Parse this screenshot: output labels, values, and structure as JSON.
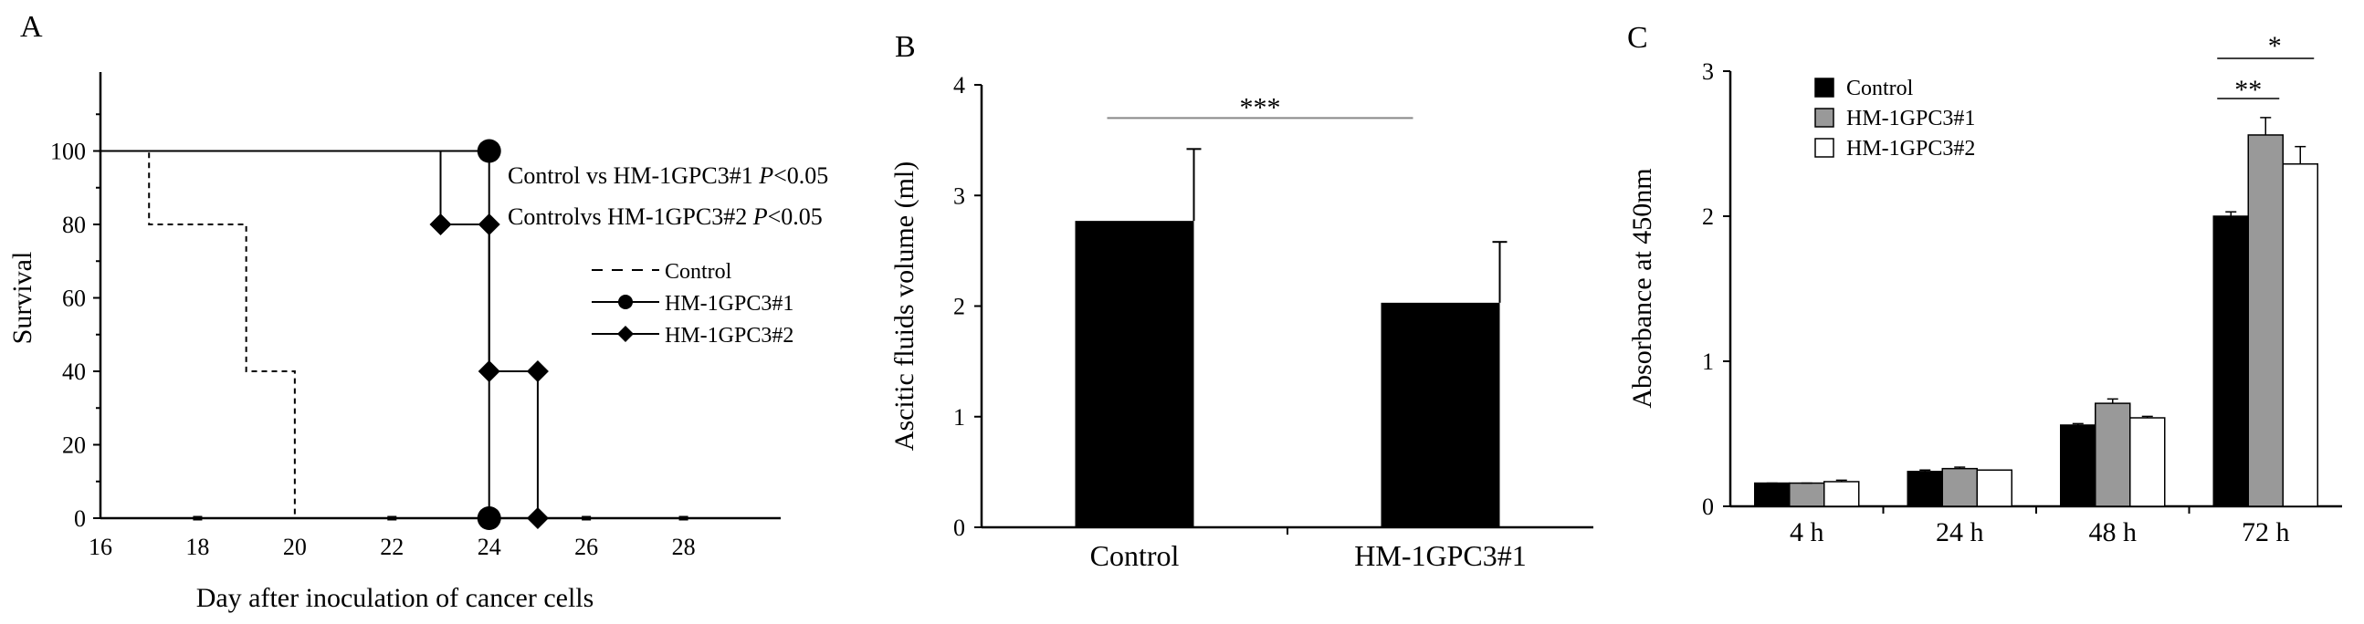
{
  "chart_data": [
    {
      "panel": "A",
      "type": "line",
      "xlabel": "Day after inoculation of cancer cells",
      "ylabel": "Survival",
      "xlim": [
        16,
        30
      ],
      "ylim": [
        0,
        120
      ],
      "xticks": [
        16,
        18,
        20,
        22,
        24,
        26,
        28
      ],
      "yticks": [
        0,
        20,
        40,
        60,
        80,
        100
      ],
      "legend_position": "right",
      "annotations": [
        {
          "text": "Control vs HM-1GPC3#1 ",
          "p_label": "P",
          "p_value": "<0.05"
        },
        {
          "text": "Controlvs HM-1GPC3#2 ",
          "p_label": "P",
          "p_value": "<0.05"
        }
      ],
      "series": [
        {
          "name": "Control",
          "style": "dashed",
          "marker": "none",
          "x": [
            16,
            17,
            17,
            19,
            19,
            20,
            20
          ],
          "y": [
            100,
            100,
            80,
            80,
            40,
            40,
            0
          ]
        },
        {
          "name": "HM-1GPC3#1",
          "style": "solid",
          "marker": "circle",
          "x": [
            16,
            24,
            24
          ],
          "y": [
            100,
            100,
            0
          ],
          "marker_points": [
            [
              24,
              100
            ],
            [
              24,
              0
            ]
          ]
        },
        {
          "name": "HM-1GPC3#2",
          "style": "solid",
          "marker": "diamond",
          "x": [
            16,
            23,
            23,
            24,
            24,
            25,
            25
          ],
          "y": [
            100,
            100,
            80,
            80,
            40,
            40,
            0
          ],
          "marker_points": [
            [
              23,
              80
            ],
            [
              24,
              80
            ],
            [
              24,
              40
            ],
            [
              25,
              40
            ],
            [
              25,
              0
            ]
          ]
        }
      ],
      "censor_ticks_x": [
        18,
        22,
        26,
        28
      ]
    },
    {
      "panel": "B",
      "type": "bar",
      "ylabel": "Ascitic fluids volume (ml)",
      "ylim": [
        0,
        4
      ],
      "yticks": [
        0,
        1,
        2,
        3,
        4
      ],
      "categories": [
        "Control",
        "HM-1GPC3#1"
      ],
      "values": [
        2.77,
        2.03
      ],
      "errors": [
        0.65,
        0.55
      ],
      "bar_color": "#000000",
      "significance": {
        "label": "***",
        "between": [
          0,
          1
        ]
      }
    },
    {
      "panel": "C",
      "type": "bar",
      "ylabel": "Absorbance at 450nm",
      "ylim": [
        0,
        3
      ],
      "yticks": [
        0,
        1,
        2,
        3
      ],
      "categories": [
        "4 h",
        "24 h",
        "48 h",
        "72 h"
      ],
      "legend_position": "top-left",
      "series": [
        {
          "name": "Control",
          "color": "#000000",
          "values": [
            0.16,
            0.24,
            0.56,
            2.0
          ],
          "errors": [
            0.0,
            0.01,
            0.01,
            0.03
          ]
        },
        {
          "name": "HM-1GPC3#1",
          "color": "#999999",
          "values": [
            0.16,
            0.26,
            0.71,
            2.56
          ],
          "errors": [
            0.0,
            0.01,
            0.03,
            0.12
          ]
        },
        {
          "name": "HM-1GPC3#2",
          "color": "#ffffff",
          "values": [
            0.17,
            0.25,
            0.61,
            2.36
          ],
          "errors": [
            0.01,
            0.0,
            0.01,
            0.12
          ]
        }
      ],
      "significance": [
        {
          "label": "**",
          "category": "72 h",
          "between": [
            "Control",
            "HM-1GPC3#1"
          ]
        },
        {
          "label": "*",
          "category": "72 h",
          "between": [
            "Control",
            "HM-1GPC3#2"
          ]
        }
      ]
    }
  ],
  "panels": {
    "a": "A",
    "b": "B",
    "c": "C"
  }
}
